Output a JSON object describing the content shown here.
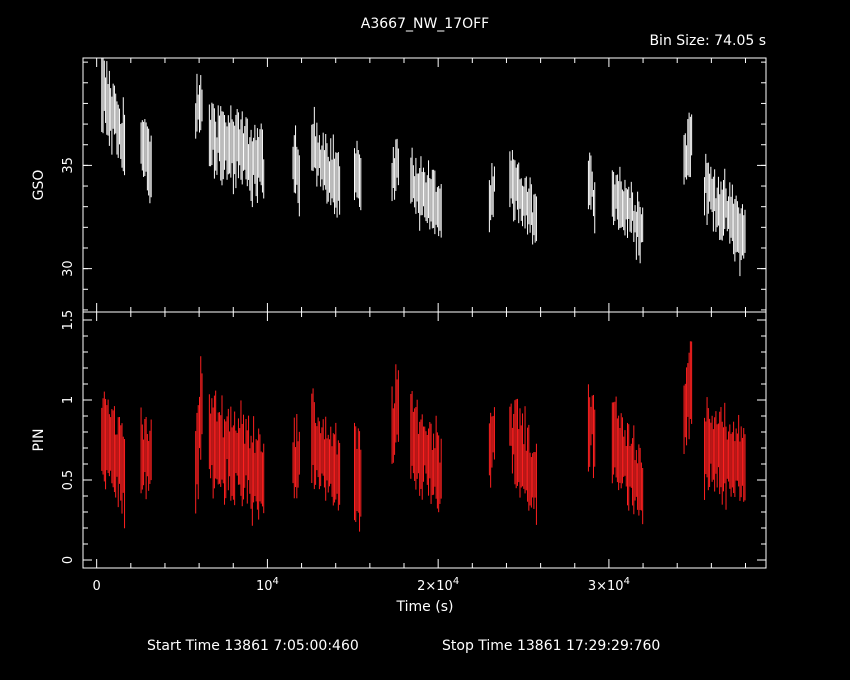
{
  "chart_data": {
    "type": "line",
    "title": "A3667_NW_17OFF",
    "bin_size_label": "Bin Size: 74.05 s",
    "xlabel": "Time (s)",
    "footer": {
      "start_label": "Start Time 13861  7:05:00:460",
      "stop_label": "Stop Time 13861 17:29:29:760"
    },
    "x_range": [
      -800,
      39200
    ],
    "x_ticks": [
      {
        "value": 0,
        "label": "0",
        "exp": ""
      },
      {
        "value": 10000,
        "label": "10",
        "exp": "4"
      },
      {
        "value": 20000,
        "label": "2×10",
        "exp": "4"
      },
      {
        "value": 30000,
        "label": "3×10",
        "exp": "4"
      }
    ],
    "panels": [
      {
        "name": "GSO",
        "ylabel": "GSO",
        "color": "#ffffff",
        "y_range": [
          27.9,
          40.2
        ],
        "y_ticks": [
          {
            "value": 30,
            "label": "30"
          },
          {
            "value": 35,
            "label": "35"
          }
        ],
        "segments": [
          {
            "t0": 300,
            "t1": 1700,
            "level": 38.5,
            "trend": -2.5,
            "spread": 1.2,
            "err": 1.4
          },
          {
            "t0": 2600,
            "t1": 3200,
            "level": 36.0,
            "trend": -1.0,
            "spread": 1.0,
            "err": 1.2
          },
          {
            "t0": 5800,
            "t1": 6200,
            "level": 37.5,
            "trend": 0.5,
            "spread": 0.8,
            "err": 1.0
          },
          {
            "t0": 6600,
            "t1": 9800,
            "level": 36.5,
            "trend": -1.5,
            "spread": 1.1,
            "err": 1.3
          },
          {
            "t0": 11500,
            "t1": 11900,
            "level": 35.0,
            "trend": -1.0,
            "spread": 1.0,
            "err": 1.3
          },
          {
            "t0": 12600,
            "t1": 14300,
            "level": 36.0,
            "trend": -2.0,
            "spread": 0.9,
            "err": 1.2
          },
          {
            "t0": 15100,
            "t1": 15500,
            "level": 34.5,
            "trend": 0.0,
            "spread": 0.6,
            "err": 1.0
          },
          {
            "t0": 17300,
            "t1": 17700,
            "level": 34.5,
            "trend": 0.5,
            "spread": 0.8,
            "err": 1.1
          },
          {
            "t0": 18400,
            "t1": 20200,
            "level": 34.3,
            "trend": -1.5,
            "spread": 0.8,
            "err": 1.1
          },
          {
            "t0": 23000,
            "t1": 23300,
            "level": 33.2,
            "trend": 0.5,
            "spread": 0.7,
            "err": 1.0
          },
          {
            "t0": 24200,
            "t1": 25800,
            "level": 34.2,
            "trend": -2.0,
            "spread": 0.8,
            "err": 1.1
          },
          {
            "t0": 28800,
            "t1": 29200,
            "level": 34.2,
            "trend": -1.0,
            "spread": 0.8,
            "err": 1.0
          },
          {
            "t0": 30200,
            "t1": 32000,
            "level": 33.8,
            "trend": -1.8,
            "spread": 0.9,
            "err": 1.1
          },
          {
            "t0": 34400,
            "t1": 34900,
            "level": 35.0,
            "trend": 1.5,
            "spread": 1.0,
            "err": 1.3
          },
          {
            "t0": 35600,
            "t1": 38000,
            "level": 34.0,
            "trend": -2.5,
            "spread": 0.9,
            "err": 1.1
          }
        ]
      },
      {
        "name": "PIN",
        "ylabel": "PIN",
        "color": "#ff2020",
        "y_range": [
          -0.05,
          1.55
        ],
        "y_ticks": [
          {
            "value": 0,
            "label": "0"
          },
          {
            "value": 0.5,
            "label": "0.5"
          },
          {
            "value": 1,
            "label": "1"
          },
          {
            "value": 1.5,
            "label": "1.5"
          }
        ],
        "segments": [
          {
            "t0": 300,
            "t1": 1700,
            "level": 0.8,
            "trend": -0.25,
            "spread": 0.12,
            "err": 0.22
          },
          {
            "t0": 2600,
            "t1": 3200,
            "level": 0.7,
            "trend": -0.1,
            "spread": 0.1,
            "err": 0.2
          },
          {
            "t0": 5800,
            "t1": 6200,
            "level": 0.55,
            "trend": 0.5,
            "spread": 0.12,
            "err": 0.25
          },
          {
            "t0": 6600,
            "t1": 9800,
            "level": 0.75,
            "trend": -0.2,
            "spread": 0.14,
            "err": 0.22
          },
          {
            "t0": 11500,
            "t1": 11900,
            "level": 0.6,
            "trend": 0.0,
            "spread": 0.1,
            "err": 0.2
          },
          {
            "t0": 12600,
            "t1": 14300,
            "level": 0.75,
            "trend": -0.25,
            "spread": 0.12,
            "err": 0.2
          },
          {
            "t0": 15100,
            "t1": 15500,
            "level": 0.5,
            "trend": 0.0,
            "spread": 0.15,
            "err": 0.25
          },
          {
            "t0": 17300,
            "t1": 17700,
            "level": 0.8,
            "trend": 0.2,
            "spread": 0.12,
            "err": 0.2
          },
          {
            "t0": 18400,
            "t1": 20200,
            "level": 0.75,
            "trend": -0.2,
            "spread": 0.12,
            "err": 0.2
          },
          {
            "t0": 23000,
            "t1": 23300,
            "level": 0.7,
            "trend": 0.1,
            "spread": 0.1,
            "err": 0.18
          },
          {
            "t0": 24200,
            "t1": 25800,
            "level": 0.8,
            "trend": -0.35,
            "spread": 0.12,
            "err": 0.2
          },
          {
            "t0": 28800,
            "t1": 29200,
            "level": 0.9,
            "trend": -0.1,
            "spread": 0.12,
            "err": 0.2
          },
          {
            "t0": 30200,
            "t1": 32000,
            "level": 0.75,
            "trend": -0.3,
            "spread": 0.12,
            "err": 0.2
          },
          {
            "t0": 34400,
            "t1": 34900,
            "level": 0.95,
            "trend": 0.15,
            "spread": 0.12,
            "err": 0.2
          },
          {
            "t0": 35600,
            "t1": 38000,
            "level": 0.7,
            "trend": -0.1,
            "spread": 0.12,
            "err": 0.2
          }
        ]
      }
    ]
  }
}
